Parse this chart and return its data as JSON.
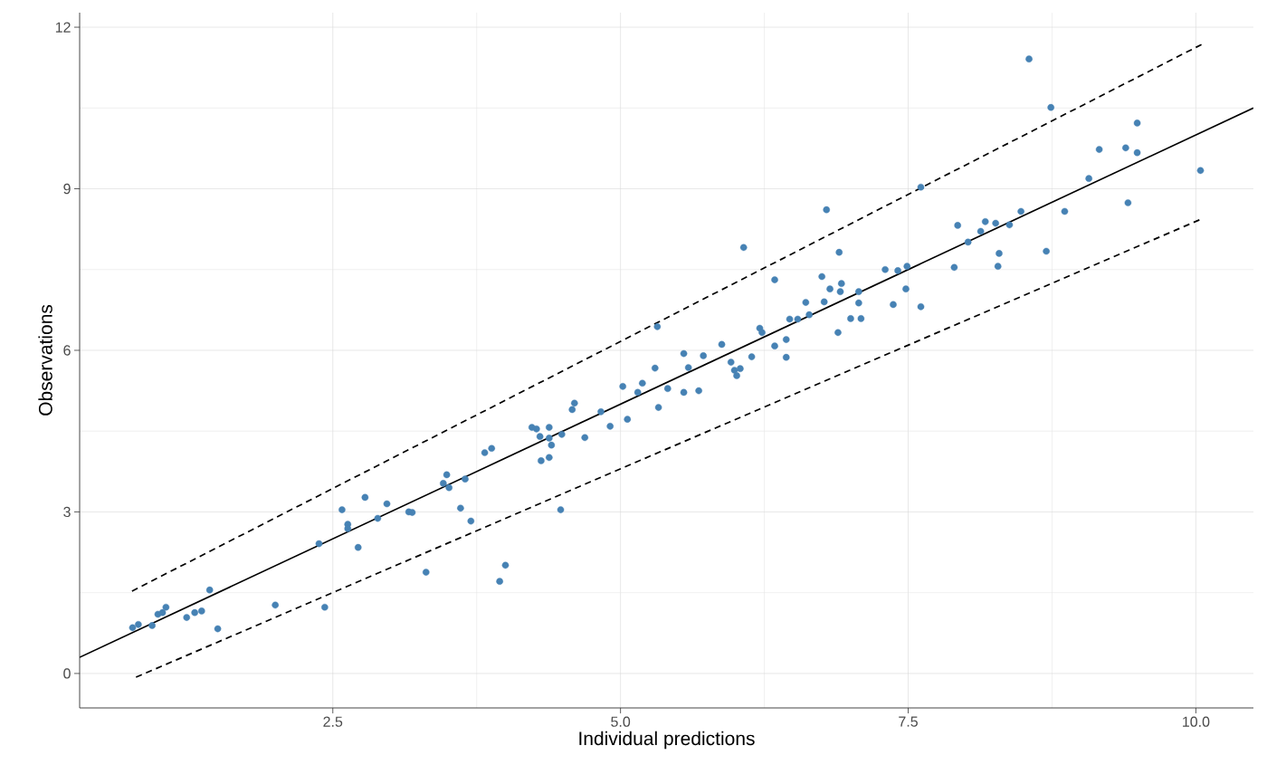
{
  "chart_data": {
    "type": "scatter",
    "xlabel": "Individual predictions",
    "ylabel": "Observations",
    "xlim": [
      0.3,
      10.5
    ],
    "ylim": [
      -0.64,
      12.27
    ],
    "xticks": [
      {
        "value": 2.5,
        "label": "2.5"
      },
      {
        "value": 5.0,
        "label": "5.0"
      },
      {
        "value": 7.5,
        "label": "7.5"
      },
      {
        "value": 10.0,
        "label": "10.0"
      }
    ],
    "yticks": [
      0,
      3,
      6,
      9,
      12
    ],
    "grid": true,
    "series": [
      {
        "marker": "circle",
        "color": "#4682b4",
        "x": [
          0.76,
          0.81,
          0.93,
          0.98,
          1.02,
          1.05,
          1.23,
          1.3,
          1.36,
          1.43,
          1.5,
          2.0,
          2.43,
          2.38,
          2.58,
          2.63,
          2.63,
          2.72,
          2.78,
          2.89,
          2.97,
          3.16,
          3.19,
          3.31,
          3.46,
          3.49,
          3.51,
          3.61,
          3.65,
          3.7,
          3.82,
          3.88,
          3.95,
          4.0,
          4.23,
          4.27,
          4.3,
          4.31,
          4.38,
          4.38,
          4.4,
          4.38,
          4.48,
          4.49,
          4.58,
          4.6,
          4.69,
          4.83,
          4.91,
          5.02,
          5.06,
          5.15,
          5.19,
          5.3,
          5.33,
          5.41,
          5.32,
          5.55,
          5.55,
          5.59,
          5.68,
          5.72,
          5.88,
          5.96,
          5.99,
          6.01,
          6.04,
          6.07,
          6.14,
          6.21,
          6.23,
          6.34,
          6.34,
          6.44,
          6.44,
          6.47,
          6.54,
          6.61,
          6.64,
          6.75,
          6.77,
          6.79,
          6.82,
          6.89,
          6.9,
          6.91,
          6.92,
          7.0,
          7.07,
          7.07,
          7.09,
          7.3,
          7.37,
          7.41,
          7.48,
          7.49,
          7.61,
          7.61,
          7.9,
          7.93,
          8.02,
          8.13,
          8.17,
          8.26,
          8.29,
          8.28,
          8.38,
          8.48,
          8.55,
          8.7,
          8.74,
          8.86,
          9.07,
          9.16,
          9.39,
          9.41,
          9.49,
          9.49,
          10.04
        ],
        "values": [
          0.85,
          0.91,
          0.89,
          1.1,
          1.13,
          1.23,
          1.04,
          1.13,
          1.16,
          1.55,
          0.83,
          1.27,
          1.23,
          2.41,
          3.04,
          2.77,
          2.69,
          2.34,
          3.27,
          2.88,
          3.15,
          3.0,
          2.99,
          1.88,
          3.53,
          3.69,
          3.45,
          3.07,
          3.61,
          2.83,
          4.1,
          4.18,
          1.71,
          2.01,
          4.57,
          4.54,
          4.4,
          3.95,
          4.57,
          4.37,
          4.24,
          4.01,
          3.04,
          4.44,
          4.9,
          5.02,
          4.38,
          4.86,
          4.59,
          5.33,
          4.72,
          5.22,
          5.39,
          5.67,
          4.94,
          5.29,
          6.44,
          5.22,
          5.94,
          5.68,
          5.25,
          5.9,
          6.11,
          5.78,
          5.63,
          5.53,
          5.66,
          7.91,
          5.88,
          6.41,
          6.33,
          7.31,
          6.08,
          6.2,
          5.87,
          6.58,
          6.58,
          6.89,
          6.66,
          7.37,
          6.9,
          8.61,
          7.14,
          6.33,
          7.82,
          7.09,
          7.24,
          6.59,
          7.09,
          6.88,
          6.59,
          7.5,
          6.85,
          7.48,
          7.14,
          7.56,
          6.81,
          9.03,
          7.54,
          8.32,
          8.01,
          8.21,
          8.39,
          8.36,
          7.8,
          7.56,
          8.33,
          8.58,
          11.41,
          7.84,
          10.51,
          8.58,
          9.19,
          9.73,
          9.76,
          8.74,
          9.67,
          10.22,
          9.34
        ]
      },
      {
        "type": "line",
        "color": "#000000",
        "line_style": "solid",
        "marker": "none",
        "x": [
          0.3,
          10.5
        ],
        "values": [
          0.3,
          10.5
        ]
      },
      {
        "type": "line",
        "color": "#000000",
        "line_style": "dashed",
        "marker": "none",
        "x": [
          0.755,
          10.05
        ],
        "values": [
          1.53,
          11.68
        ]
      },
      {
        "type": "line",
        "color": "#000000",
        "line_style": "dashed",
        "marker": "none",
        "x": [
          0.79,
          10.05
        ],
        "values": [
          -0.07,
          8.44
        ]
      }
    ]
  }
}
